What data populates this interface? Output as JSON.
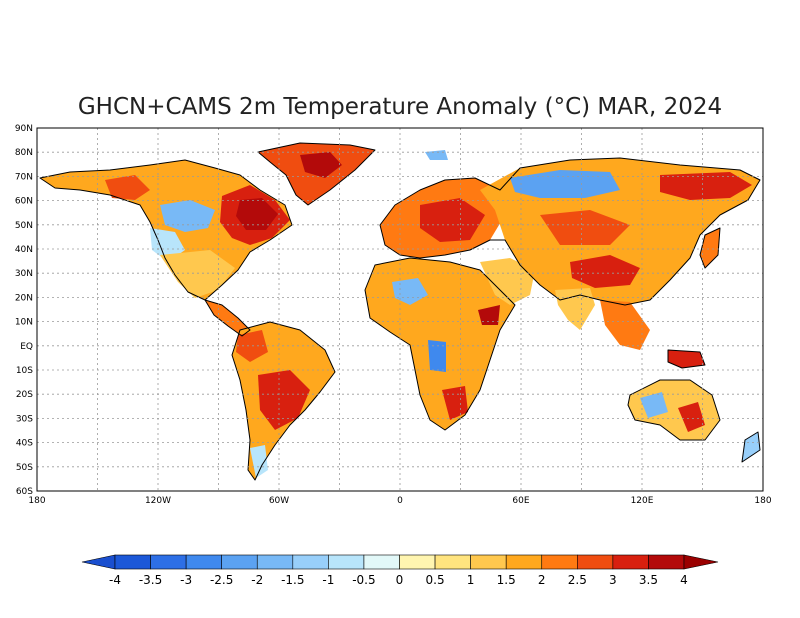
{
  "title": "GHCN+CAMS 2m Temperature Anomaly (°C) MAR, 2024",
  "map": {
    "lat_labels": [
      "90N",
      "80N",
      "70N",
      "60N",
      "50N",
      "40N",
      "30N",
      "20N",
      "10N",
      "EQ",
      "10S",
      "20S",
      "30S",
      "40S",
      "50S",
      "60S"
    ],
    "lon_labels": [
      "180",
      "120W",
      "60W",
      "0",
      "60E",
      "120E",
      "180"
    ]
  },
  "colorbar": {
    "labels": [
      "-4",
      "-3.5",
      "-3",
      "-2.5",
      "-2",
      "-1.5",
      "-1",
      "-0.5",
      "0",
      "0.5",
      "1",
      "1.5",
      "2",
      "2.5",
      "3",
      "3.5",
      "4"
    ],
    "colors": [
      "#1c58d8",
      "#2d6fe6",
      "#3f89ee",
      "#5ba2f2",
      "#78b9f6",
      "#98cffa",
      "#b8e5fb",
      "#e2f8f8",
      "#fff5b0",
      "#ffe47f",
      "#ffc84e",
      "#ffa81e",
      "#ff7a12",
      "#f04d10",
      "#d8200f",
      "#b30a0a"
    ],
    "under_color": "#1a4fcf",
    "over_color": "#9a0000"
  }
}
